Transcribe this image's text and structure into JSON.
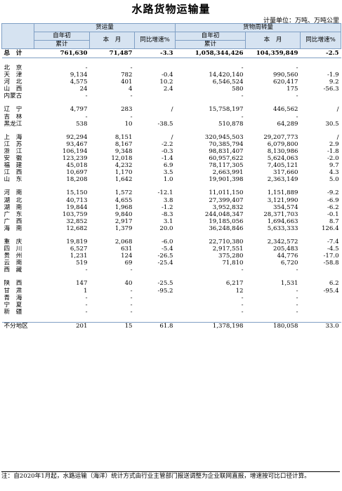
{
  "title": "水路货物运输量",
  "unit": "计量单位：万吨、万吨公里",
  "headers": {
    "group_freight": "货运量",
    "group_turnover": "货物周转量",
    "ytd_line1": "自年初",
    "ytd_line2": "累计",
    "month": "本　月",
    "yoy": "同比增速%"
  },
  "total": {
    "region": "总　计",
    "f_ytd": "761,630",
    "f_month": "71,487",
    "f_yoy": "-3.3",
    "t_ytd": "1,058,344,426",
    "t_month": "104,359,849",
    "t_yoy": "-2.5"
  },
  "groups": [
    [
      [
        "北　京",
        "-",
        "-",
        "",
        "-",
        "-",
        ""
      ],
      [
        "天　津",
        "9,134",
        "782",
        "-0.4",
        "14,420,140",
        "990,560",
        "-1.9"
      ],
      [
        "河　北",
        "4,575",
        "401",
        "10.2",
        "6,546,524",
        "620,417",
        "9.2"
      ],
      [
        "山　西",
        "24",
        "4",
        "2.4",
        "580",
        "175",
        "-56.3"
      ],
      [
        "内蒙古",
        "-",
        "-",
        "",
        "-",
        "-",
        ""
      ]
    ],
    [
      [
        "辽　宁",
        "4,797",
        "283",
        "/",
        "15,758,197",
        "446,562",
        "/"
      ],
      [
        "吉　林",
        "-",
        "-",
        "",
        "-",
        "-",
        ""
      ],
      [
        "黑龙江",
        "538",
        "10",
        "-38.5",
        "510,878",
        "64,289",
        "30.5"
      ]
    ],
    [
      [
        "上　海",
        "92,294",
        "8,151",
        "/",
        "320,945,503",
        "29,207,773",
        "/"
      ],
      [
        "江　苏",
        "93,467",
        "8,167",
        "-2.2",
        "70,385,794",
        "6,079,800",
        "2.9"
      ],
      [
        "浙　江",
        "106,194",
        "9,348",
        "-0.3",
        "98,831,407",
        "8,130,986",
        "-1.8"
      ],
      [
        "安　徽",
        "123,239",
        "12,018",
        "-1.4",
        "60,957,622",
        "5,624,063",
        "-2.0"
      ],
      [
        "福　建",
        "45,018",
        "4,232",
        "6.9",
        "78,117,305",
        "7,405,121",
        "9.7"
      ],
      [
        "江　西",
        "10,697",
        "1,170",
        "3.5",
        "2,663,991",
        "317,660",
        "4.3"
      ],
      [
        "山　东",
        "18,208",
        "1,642",
        "1.0",
        "19,901,398",
        "2,363,149",
        "5.0"
      ]
    ],
    [
      [
        "河　南",
        "15,150",
        "1,572",
        "-12.1",
        "11,011,150",
        "1,151,889",
        "-9.2"
      ],
      [
        "湖　北",
        "40,713",
        "4,655",
        "3.8",
        "27,399,407",
        "3,121,990",
        "-6.9"
      ],
      [
        "湖　南",
        "19,844",
        "1,968",
        "-1.2",
        "3,952,832",
        "354,574",
        "-6.2"
      ],
      [
        "广　东",
        "103,759",
        "9,840",
        "-8.3",
        "244,048,347",
        "28,371,703",
        "-0.1"
      ],
      [
        "广　西",
        "32,852",
        "2,917",
        "3.1",
        "19,185,056",
        "1,694,663",
        "8.7"
      ],
      [
        "海　南",
        "12,682",
        "1,379",
        "20.0",
        "36,248,846",
        "5,633,333",
        "126.4"
      ]
    ],
    [
      [
        "重　庆",
        "19,819",
        "2,068",
        "-6.0",
        "22,710,380",
        "2,342,572",
        "-7.4"
      ],
      [
        "四　川",
        "6,527",
        "631",
        "-5.4",
        "2,917,551",
        "205,483",
        "-4.5"
      ],
      [
        "贵　州",
        "1,231",
        "124",
        "-26.5",
        "375,280",
        "44,776",
        "-17.0"
      ],
      [
        "云　南",
        "519",
        "69",
        "-25.4",
        "71,810",
        "6,720",
        "-58.8"
      ],
      [
        "西　藏",
        "-",
        "-",
        "",
        "-",
        "-",
        ""
      ]
    ],
    [
      [
        "陕　西",
        "147",
        "40",
        "-25.5",
        "6,217",
        "1,531",
        "6.2"
      ],
      [
        "甘　肃",
        "1",
        "-",
        "-95.2",
        "12",
        "-",
        "-95.4"
      ],
      [
        "青　海",
        "-",
        "-",
        "",
        "-",
        "-",
        ""
      ],
      [
        "宁　夏",
        "-",
        "-",
        "",
        "-",
        "-",
        ""
      ],
      [
        "新　疆",
        "-",
        "-",
        "",
        "-",
        "-",
        ""
      ]
    ]
  ],
  "other": [
    "不分地区",
    "201",
    "15",
    "61.8",
    "1,378,198",
    "180,058",
    "33.0"
  ],
  "note": "注：自2020年1月起，水路运输（海洋）统计方式由行业主管部门报送调整为企业联网直报，增速按可比口径计算。"
}
